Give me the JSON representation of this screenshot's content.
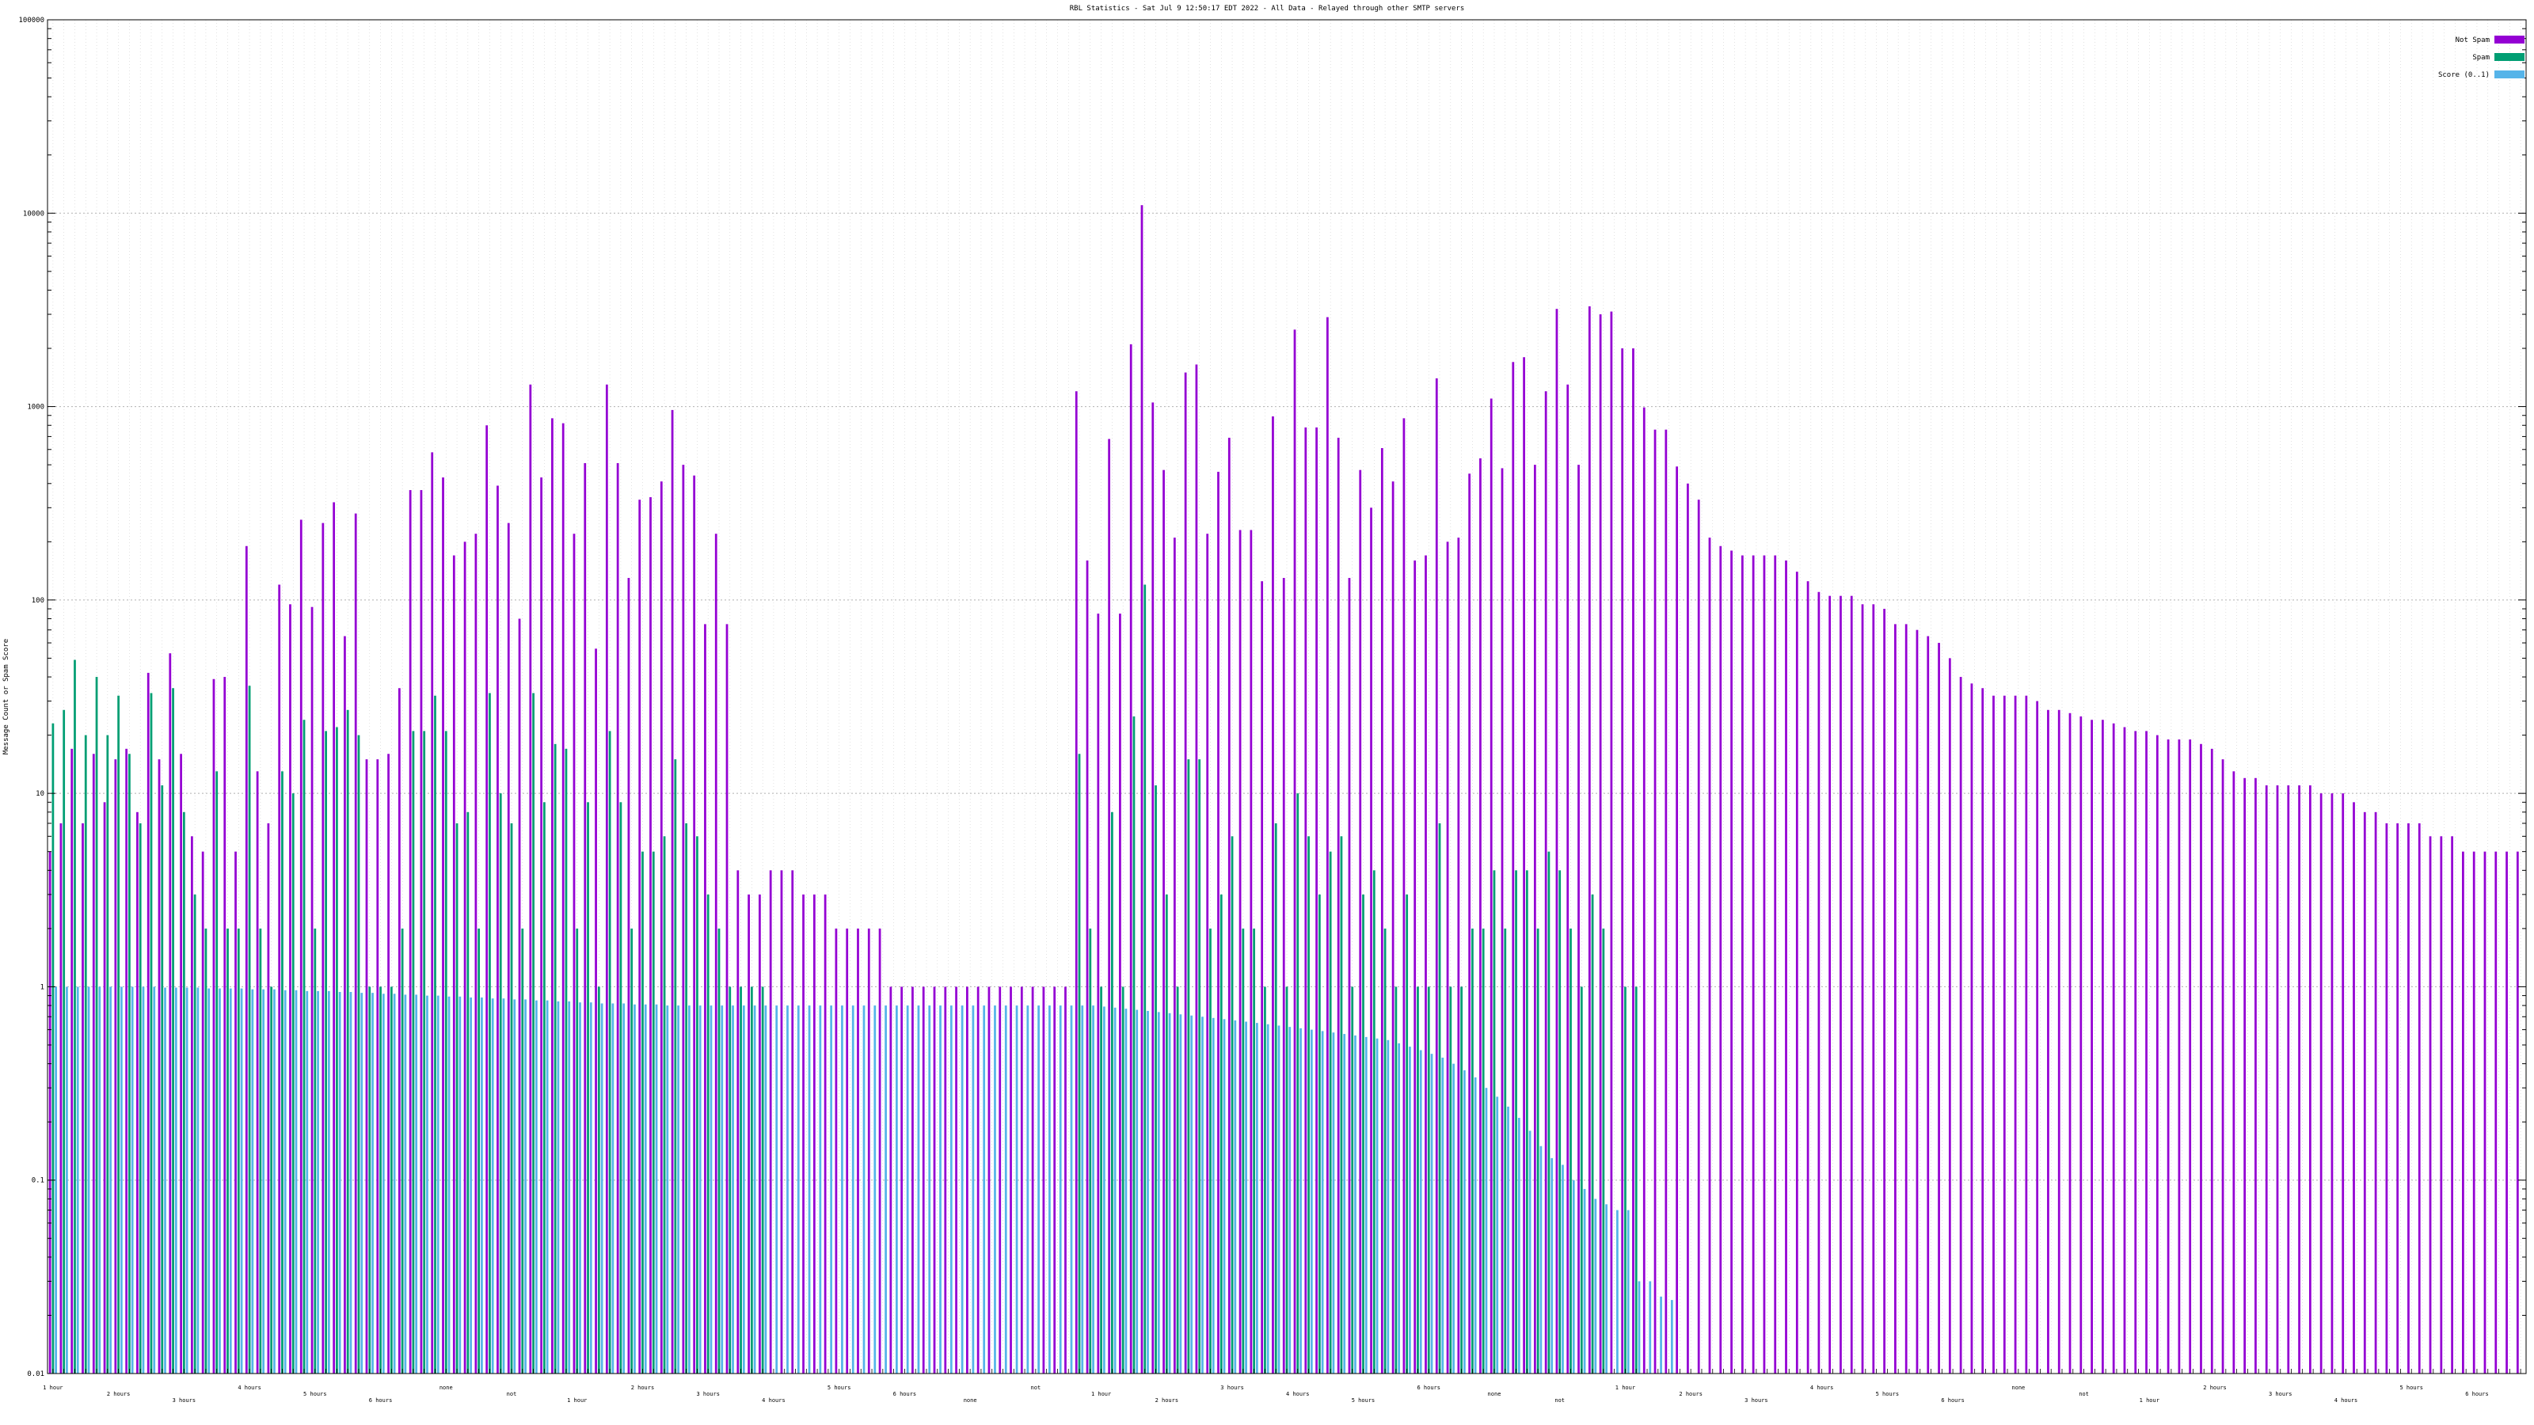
{
  "chart_data": {
    "type": "bar",
    "title": "RBL Statistics - Sat Jul  9 12:50:17 EDT 2022 - All Data - Relayed through other SMTP servers",
    "ylabel": "Message Count or Spam Score",
    "xlabel": "",
    "yscale": "log",
    "ylim": [
      0.01,
      100000
    ],
    "y_ticks": [
      "0.01",
      "0.1",
      "1",
      "10",
      "100",
      "1000",
      "10000",
      "100000"
    ],
    "grid": true,
    "legend_position": "top-right",
    "legend": [
      "Not Spam",
      "Spam",
      "Score (0..1)"
    ],
    "colors": {
      "not_spam": "#9400d3",
      "spam": "#009e73",
      "score": "#56b4e9"
    },
    "x_label_rows": [
      "1 hour",
      "2 hours",
      "3 hours",
      "4 hours",
      "5 hours",
      "6 hours",
      "none",
      "not"
    ],
    "series": [
      {
        "name": "Not Spam",
        "color": "#9400d3",
        "values": [
          5,
          7,
          17,
          7,
          16,
          9,
          15,
          17,
          8,
          42,
          15,
          53,
          16,
          6,
          5,
          39,
          40,
          5,
          190,
          13,
          7,
          120,
          95,
          260,
          92,
          250,
          320,
          65,
          280,
          15,
          15,
          16,
          35,
          370,
          370,
          580,
          430,
          170,
          200,
          220,
          800,
          390,
          250,
          80,
          1300,
          430,
          870,
          820,
          220,
          510,
          56,
          1300,
          510,
          130,
          330,
          340,
          410,
          960,
          500,
          440,
          75,
          220,
          75,
          4,
          3,
          3,
          4,
          4,
          4,
          3,
          3,
          3,
          2,
          2,
          2,
          2,
          2,
          1,
          1,
          1,
          1,
          1,
          1,
          1,
          1,
          1,
          1,
          1,
          1,
          1,
          1,
          1,
          1,
          1,
          1200,
          160,
          85,
          680,
          85,
          2100,
          11000,
          1050,
          470,
          210,
          1500,
          1650,
          220,
          460,
          690,
          230,
          230,
          125,
          890,
          130,
          2500,
          780,
          780,
          2900,
          690,
          130,
          470,
          300,
          610,
          410,
          870,
          160,
          170,
          1400,
          200,
          210,
          450,
          540,
          1100,
          480,
          1700,
          1800,
          500,
          1200,
          3200,
          1300,
          500,
          3300,
          3000,
          3100,
          2000,
          2000,
          990,
          760,
          760,
          490,
          400,
          330,
          210,
          190,
          180,
          170,
          170,
          170,
          170,
          160,
          140,
          125,
          110,
          105,
          105,
          105,
          95,
          95,
          90,
          75,
          75,
          70,
          65,
          60,
          50,
          40,
          37,
          35,
          32,
          32,
          32,
          32,
          30,
          27,
          27,
          26,
          25,
          24,
          24,
          23,
          22,
          21,
          21,
          20,
          19,
          19,
          19,
          18,
          17,
          15,
          13,
          12,
          12,
          11,
          11,
          11,
          11,
          11,
          10,
          10,
          10,
          9,
          8,
          8,
          7,
          7,
          7,
          7,
          6,
          6,
          6,
          5,
          5,
          5,
          5,
          5,
          5
        ]
      },
      {
        "name": "Spam",
        "color": "#009e73",
        "values": [
          23,
          27,
          49,
          20,
          40,
          20,
          32,
          16,
          7,
          33,
          11,
          35,
          8,
          3,
          2,
          13,
          2,
          2,
          36,
          2,
          1,
          13,
          10,
          24,
          2,
          21,
          22,
          27,
          20,
          1,
          1,
          1,
          2,
          21,
          21,
          32,
          21,
          7,
          8,
          2,
          33,
          10,
          7,
          2,
          33,
          9,
          18,
          17,
          2,
          9,
          1,
          21,
          9,
          2,
          5,
          5,
          6,
          15,
          7,
          6,
          3,
          2,
          1,
          1,
          1,
          1,
          0,
          0,
          0,
          0,
          0,
          0,
          0,
          0,
          0,
          0,
          0,
          0,
          0,
          0,
          0,
          0,
          0,
          0,
          0,
          0,
          0,
          0,
          0,
          0,
          0,
          0,
          0,
          0,
          16,
          2,
          1,
          8,
          1,
          25,
          120,
          11,
          3,
          1,
          15,
          15,
          2,
          3,
          6,
          2,
          2,
          1,
          7,
          1,
          10,
          6,
          3,
          5,
          6,
          1,
          3,
          4,
          2,
          1,
          3,
          1,
          1,
          7,
          1,
          1,
          2,
          2,
          4,
          2,
          4,
          4,
          2,
          5,
          4,
          2,
          1,
          3,
          2,
          0,
          1,
          1,
          0,
          0,
          0,
          0,
          0,
          0,
          0,
          0,
          0,
          0,
          0,
          0,
          0,
          0,
          0,
          0,
          0,
          0,
          0,
          0,
          0,
          0,
          0,
          0,
          0,
          0,
          0,
          0,
          0,
          0,
          0,
          0,
          0,
          0,
          0,
          0,
          0,
          0,
          0,
          0,
          0,
          0,
          0,
          0,
          0,
          0,
          0,
          0,
          0,
          0,
          0,
          0,
          0,
          0,
          0,
          0,
          0,
          0,
          0,
          0,
          0,
          0,
          0,
          0,
          0,
          0,
          0,
          0,
          0,
          0,
          0,
          0,
          0,
          0,
          0,
          0,
          0,
          0,
          0,
          0,
          0,
          0,
          0,
          0,
          0,
          0,
          0,
          0
        ]
      },
      {
        "name": "Score (0..1)",
        "color": "#56b4e9",
        "values": [
          1,
          1,
          1,
          1,
          1,
          1,
          1,
          1,
          1,
          1,
          0.99,
          0.99,
          0.99,
          0.99,
          0.98,
          0.98,
          0.98,
          0.98,
          0.97,
          0.97,
          0.97,
          0.96,
          0.96,
          0.95,
          0.95,
          0.95,
          0.94,
          0.94,
          0.93,
          0.93,
          0.92,
          0.92,
          0.91,
          0.91,
          0.9,
          0.9,
          0.89,
          0.89,
          0.88,
          0.88,
          0.87,
          0.87,
          0.86,
          0.86,
          0.85,
          0.85,
          0.84,
          0.84,
          0.83,
          0.83,
          0.82,
          0.82,
          0.82,
          0.81,
          0.81,
          0.81,
          0.8,
          0.8,
          0.8,
          0.8,
          0.8,
          0.8,
          0.8,
          0.8,
          0.8,
          0.8,
          0.8,
          0.8,
          0.8,
          0.8,
          0.8,
          0.8,
          0.8,
          0.8,
          0.8,
          0.8,
          0.8,
          0.8,
          0.8,
          0.8,
          0.8,
          0.8,
          0.8,
          0.8,
          0.8,
          0.8,
          0.8,
          0.8,
          0.8,
          0.8,
          0.8,
          0.8,
          0.8,
          0.8,
          0.8,
          0.8,
          0.79,
          0.78,
          0.77,
          0.76,
          0.75,
          0.74,
          0.73,
          0.72,
          0.71,
          0.7,
          0.69,
          0.68,
          0.67,
          0.66,
          0.65,
          0.64,
          0.63,
          0.62,
          0.61,
          0.6,
          0.59,
          0.58,
          0.57,
          0.56,
          0.55,
          0.54,
          0.53,
          0.51,
          0.49,
          0.47,
          0.45,
          0.43,
          0.4,
          0.37,
          0.34,
          0.3,
          0.27,
          0.24,
          0.21,
          0.18,
          0.15,
          0.13,
          0.12,
          0.1,
          0.09,
          0.08,
          0.075,
          0.07,
          0.07,
          0.03,
          0.03,
          0.025,
          0.024,
          0,
          0,
          0,
          0,
          0,
          0,
          0,
          0,
          0,
          0,
          0,
          0,
          0,
          0,
          0,
          0,
          0,
          0,
          0,
          0,
          0,
          0,
          0,
          0,
          0,
          0,
          0,
          0,
          0,
          0,
          0,
          0,
          0,
          0,
          0,
          0,
          0,
          0,
          0,
          0,
          0,
          0,
          0,
          0,
          0,
          0,
          0,
          0,
          0,
          0,
          0,
          0,
          0,
          0,
          0,
          0,
          0,
          0,
          0,
          0,
          0,
          0,
          0,
          0,
          0,
          0,
          0,
          0,
          0,
          0,
          0,
          0,
          0,
          0,
          0,
          0,
          0,
          0,
          0,
          0,
          0,
          0,
          0,
          0,
          0,
          0,
          0,
          0,
          0,
          0,
          0,
          0,
          0,
          0,
          0,
          0,
          0,
          0
        ]
      }
    ]
  }
}
